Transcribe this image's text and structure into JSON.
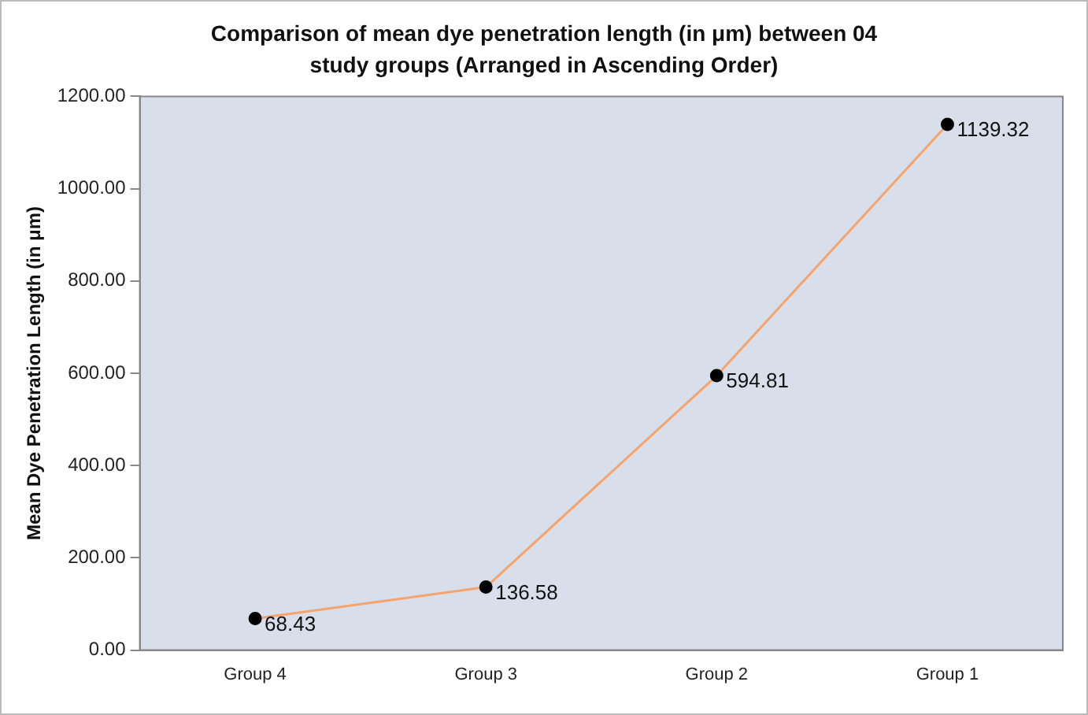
{
  "chart_data": {
    "type": "line",
    "title": "Comparison of mean dye penetration length (in μm) between 04 study groups (Arranged in Ascending Order)",
    "ylabel": "Mean Dye Penetration Length (in μm)",
    "categories": [
      "Group 4",
      "Group 3",
      "Group 2",
      "Group 1"
    ],
    "series": [
      {
        "color": "#f4a46c",
        "values": [
          68.43,
          136.58,
          594.81,
          1139.32
        ]
      }
    ],
    "ylim": [
      0,
      1200
    ],
    "yticks": [
      {
        "value": 0,
        "label": "0.00"
      },
      {
        "value": 200,
        "label": "200.00"
      },
      {
        "value": 400,
        "label": "400.00"
      },
      {
        "value": 600,
        "label": "600.00"
      },
      {
        "value": 800,
        "label": "800.00"
      },
      {
        "value": 1000,
        "label": "1000.00"
      },
      {
        "value": 1200,
        "label": "1200.00"
      }
    ],
    "grid": false,
    "legend": false,
    "marker": "circle",
    "line_style": "solid",
    "data_labels": true
  }
}
